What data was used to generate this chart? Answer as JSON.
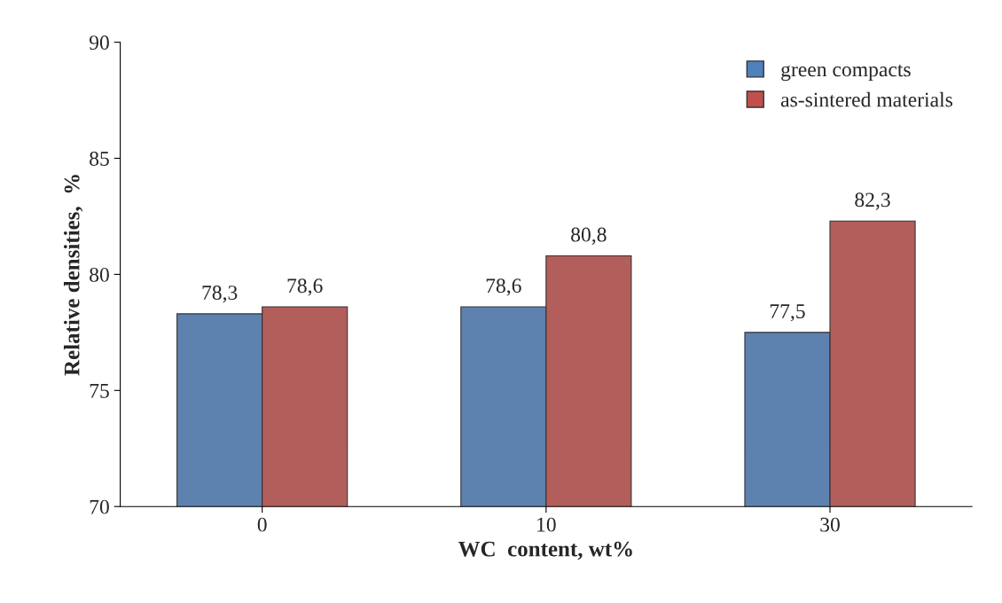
{
  "chart_data": {
    "type": "bar",
    "xlabel": "WC  content, wt%",
    "ylabel": "Relative densities,  %",
    "categories": [
      "0",
      "10",
      "30"
    ],
    "series": [
      {
        "name": "green compacts",
        "color": "#4f81bd",
        "values": [
          78.3,
          78.6,
          77.5
        ],
        "value_labels": [
          "78,3",
          "78,6",
          "77,5"
        ]
      },
      {
        "name": "as-sintered materials",
        "color": "#c0504d",
        "values": [
          78.6,
          80.8,
          82.3
        ],
        "value_labels": [
          "78,6",
          "80,8",
          "82,3"
        ]
      }
    ],
    "ylim": [
      70,
      90
    ],
    "yticks": [
      70,
      75,
      80,
      85,
      90
    ],
    "grid": false,
    "legend": "top right"
  }
}
